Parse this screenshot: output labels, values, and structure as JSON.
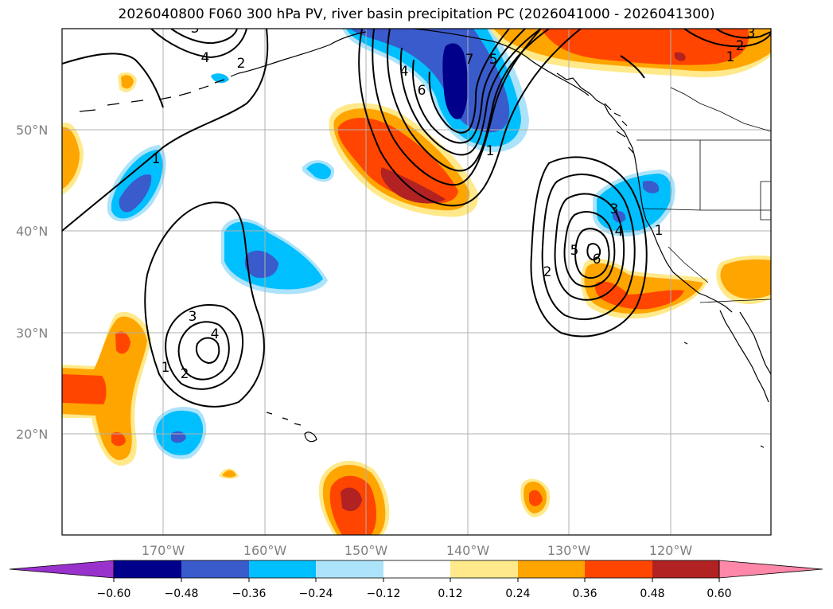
{
  "title": "2026040800 F060 300 hPa PV, river basin precipitation PC (2026041000 - 2026041300)",
  "map": {
    "lat_labels": [
      "50°N",
      "40°N",
      "30°N",
      "20°N"
    ],
    "lon_labels": [
      "170°W",
      "160°W",
      "150°W",
      "140°W",
      "130°W",
      "120°W"
    ],
    "contour_labels": [
      "3",
      "4",
      "2",
      "1",
      "4",
      "6",
      "5",
      "7",
      "1",
      "2",
      "3",
      "1",
      "3",
      "4",
      "5",
      "6",
      "1",
      "2",
      "3",
      "4",
      "1",
      "2"
    ]
  },
  "colorbar": {
    "ticks": [
      "−0.60",
      "−0.48",
      "−0.36",
      "−0.24",
      "−0.12",
      "0.12",
      "0.24",
      "0.36",
      "0.48",
      "0.60"
    ],
    "colors": [
      "#9932cc",
      "#00008b",
      "#3a5bcc",
      "#00bfff",
      "#ade3fa",
      "#ffffff",
      "#ffe98a",
      "#ffa500",
      "#ff4500",
      "#b22222",
      "#ff87a8"
    ]
  },
  "palette": {
    "dark_blue": "#00008b",
    "mid_blue": "#3a5bcc",
    "sky_blue": "#00bfff",
    "light_blue": "#ade3fa",
    "light_yellow": "#ffe98a",
    "orange": "#ffa500",
    "orange_red": "#ff4500",
    "firebrick": "#b22222"
  }
}
